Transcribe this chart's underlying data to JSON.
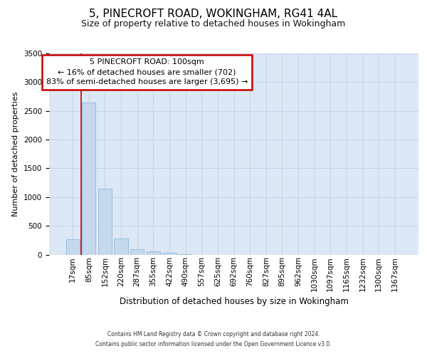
{
  "title1": "5, PINECROFT ROAD, WOKINGHAM, RG41 4AL",
  "title2": "Size of property relative to detached houses in Wokingham",
  "xlabel": "Distribution of detached houses by size in Wokingham",
  "ylabel": "Number of detached properties",
  "categories": [
    "17sqm",
    "85sqm",
    "152sqm",
    "220sqm",
    "287sqm",
    "355sqm",
    "422sqm",
    "490sqm",
    "557sqm",
    "625sqm",
    "692sqm",
    "760sqm",
    "827sqm",
    "895sqm",
    "962sqm",
    "1030sqm",
    "1097sqm",
    "1165sqm",
    "1232sqm",
    "1300sqm",
    "1367sqm"
  ],
  "values": [
    270,
    2640,
    1140,
    280,
    90,
    55,
    35,
    5,
    0,
    0,
    0,
    0,
    0,
    0,
    0,
    0,
    0,
    0,
    0,
    0,
    0
  ],
  "bar_color": "#c5d8ee",
  "bar_edge_color": "#8ab0d4",
  "annotation_text": "5 PINECROFT ROAD: 100sqm\n← 16% of detached houses are smaller (702)\n83% of semi-detached houses are larger (3,695) →",
  "annotation_box_facecolor": "#ffffff",
  "annotation_box_edgecolor": "#cc0000",
  "vline_x": 0.5,
  "vline_color": "#cc0000",
  "ylim": [
    0,
    3500
  ],
  "yticks": [
    0,
    500,
    1000,
    1500,
    2000,
    2500,
    3000,
    3500
  ],
  "grid_color": "#c8d4e4",
  "bg_color": "#dce8f5",
  "title1_fontsize": 11,
  "title2_fontsize": 9,
  "ylabel_fontsize": 8,
  "xlabel_fontsize": 8.5,
  "tick_fontsize": 7.5,
  "footer1": "Contains HM Land Registry data © Crown copyright and database right 2024.",
  "footer2": "Contains public sector information licensed under the Open Government Licence v3.0."
}
